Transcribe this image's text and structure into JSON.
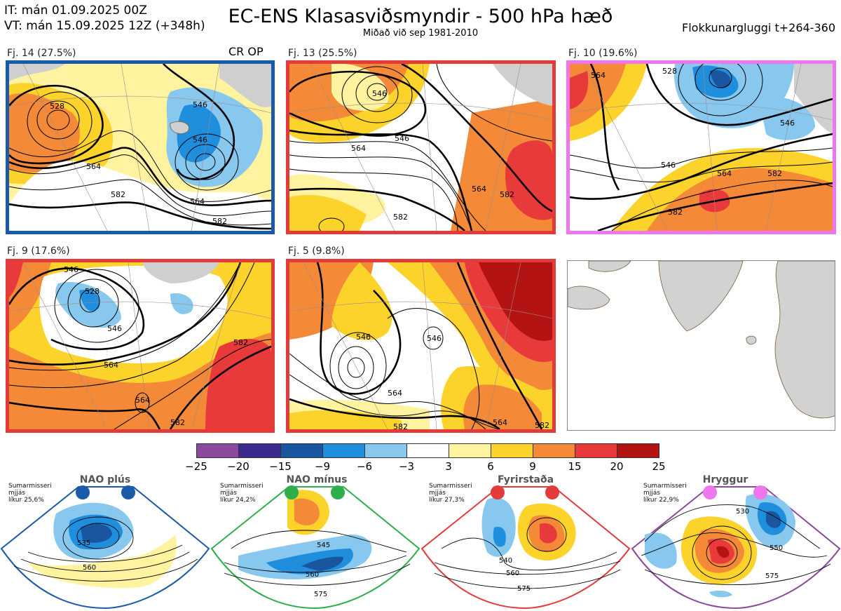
{
  "header": {
    "it_line": "IT: mán 01.09.2025 00Z",
    "vt_line": "VT: mán 15.09.2025 12Z  (+348h)",
    "title": "EC-ENS Klasasviðsmyndir - 500 hPa hæð",
    "subtitle": "Miðað við sep 1981-2010",
    "window": "Flokkunargluggi t+264-360"
  },
  "clusters": [
    {
      "label": "Fj. 14 (27.5%)",
      "tag": "CR OP",
      "border": "#1a5aa8",
      "contours": [
        "546",
        "528",
        "564",
        "546",
        "582",
        "564",
        "582"
      ]
    },
    {
      "label": "Fj. 13 (25.5%)",
      "border": "#e33a3a",
      "contours": [
        "546",
        "546",
        "564",
        "564",
        "582",
        "582"
      ]
    },
    {
      "label": "Fj. 10 (19.6%)",
      "border": "#ee77ee",
      "contours": [
        "564",
        "528",
        "546",
        "546",
        "564",
        "582",
        "582"
      ]
    },
    {
      "label": "Fj. 9 (17.6%)",
      "border": "#e33a3a",
      "contours": [
        "546",
        "528",
        "546",
        "564",
        "564",
        "582",
        "582"
      ]
    },
    {
      "label": "Fj. 5 (9.8%)",
      "border": "#e33a3a",
      "contours": [
        "546",
        "546",
        "564",
        "564",
        "582",
        "582"
      ]
    }
  ],
  "colorbar": {
    "ticks": [
      "−25",
      "−20",
      "−15",
      "−9",
      "−6",
      "−3",
      "3",
      "6",
      "9",
      "15",
      "20",
      "25"
    ],
    "colors": [
      "#8a4a9c",
      "#3b2a8c",
      "#1a55a0",
      "#1f8fdd",
      "#88c8ee",
      "#ffffff",
      "#fff3a0",
      "#fcd32a",
      "#f48a38",
      "#e83a3a",
      "#b31313"
    ]
  },
  "regimes": [
    {
      "name": "NAO plús",
      "info_line1": "Sumarmisseri",
      "info_line2": "mjjás",
      "info_line3": "líkur 25,6%",
      "color": "#1a5aa8",
      "contours": [
        "535",
        "560"
      ]
    },
    {
      "name": "NAO mínus",
      "info_line1": "Sumarmisseri",
      "info_line2": "mjjás",
      "info_line3": "líkur 24,2%",
      "color": "#2eae4c",
      "contours": [
        "545",
        "560",
        "575"
      ]
    },
    {
      "name": "Fyrirstaða",
      "info_line1": "Sumarmisseri",
      "info_line2": "mjjás",
      "info_line3": "líkur 27,3%",
      "color": "#e33a3a",
      "contours": [
        "540",
        "560",
        "575"
      ]
    },
    {
      "name": "Hryggur",
      "info_line1": "Sumarmisseri",
      "info_line2": "mjjás",
      "info_line3": "líkur 22,9%",
      "color": "#ee77ee",
      "contours": [
        "530",
        "550",
        "575"
      ]
    }
  ]
}
